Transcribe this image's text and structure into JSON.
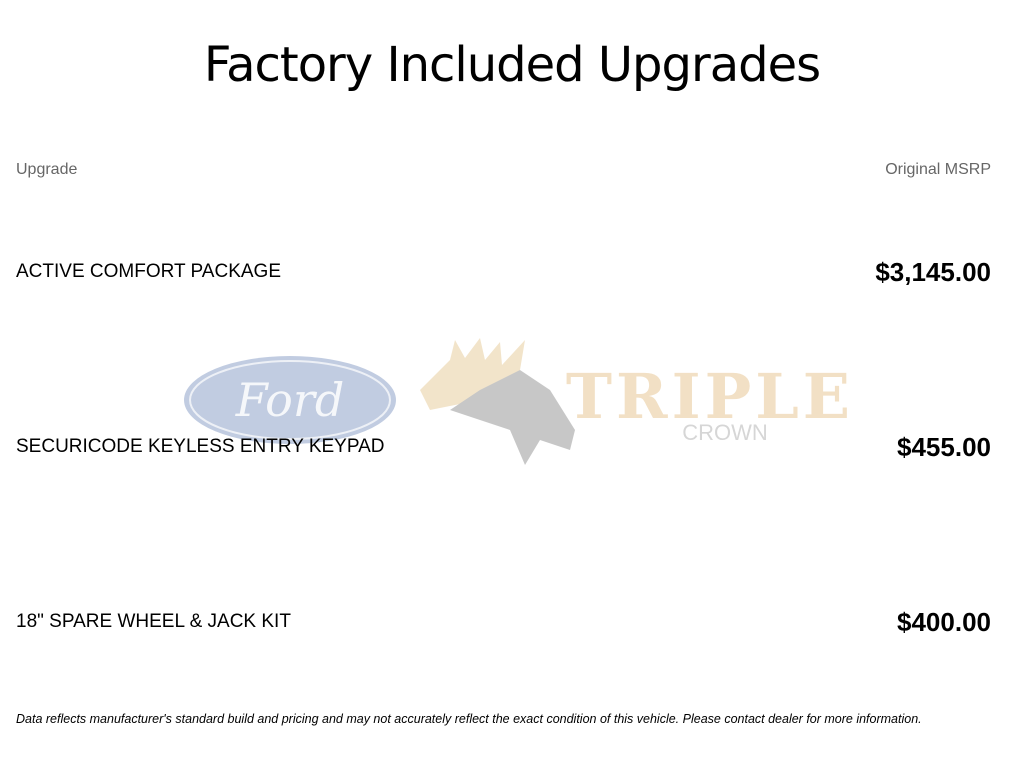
{
  "title": "Factory Included Upgrades",
  "table": {
    "headers": {
      "upgrade": "Upgrade",
      "msrp": "Original MSRP"
    },
    "rows": [
      {
        "name": "ACTIVE COMFORT PACKAGE",
        "price": "$3,145.00"
      },
      {
        "name": "SECURICODE KEYLESS ENTRY KEYPAD",
        "price": "$455.00"
      },
      {
        "name": "18\" SPARE WHEEL & JACK KIT",
        "price": "$400.00"
      }
    ]
  },
  "watermark": {
    "ford_logo_text": "Ford",
    "dealer_logo_text": "TRIPLE",
    "dealer_logo_subtext": "CROWN"
  },
  "disclaimer": "Data reflects manufacturer's standard build and pricing and may not accurately reflect the exact condition of this vehicle. Please contact dealer for more information."
}
